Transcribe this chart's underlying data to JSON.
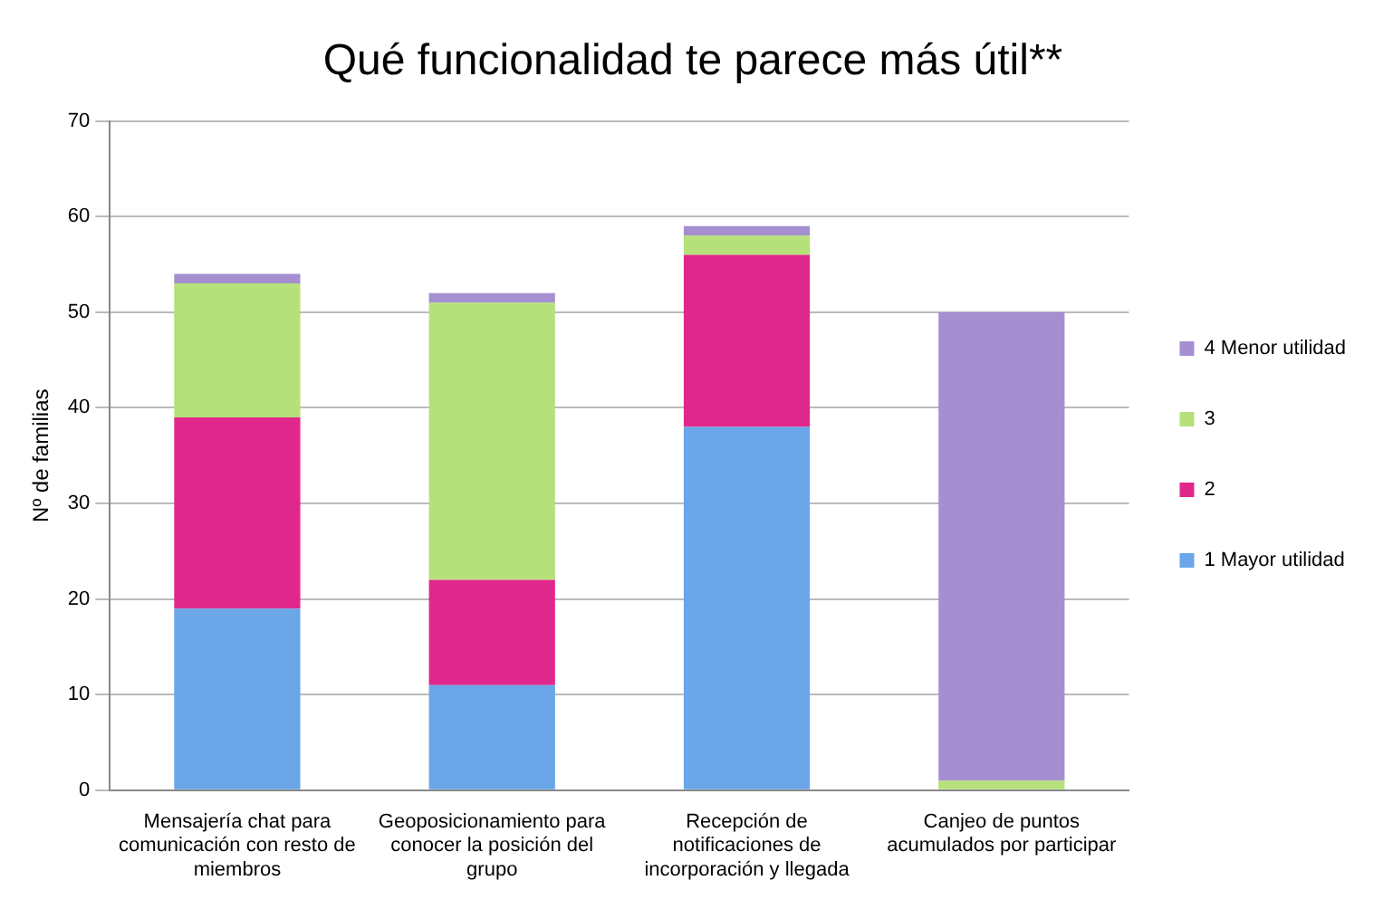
{
  "chart_data": {
    "type": "bar",
    "title": "Qué funcionalidad te parece más útil**",
    "ylabel": "Nº de familias",
    "categories": [
      "Mensajería chat para comunicación con resto de miembros",
      "Geoposicionamiento para conocer la posición del grupo",
      "Recepción de notificaciones de incorporación y llegada",
      "Canjeo de puntos acumulados por participar"
    ],
    "stacked": true,
    "ylim": [
      0,
      70
    ],
    "yticks": [
      0,
      10,
      20,
      30,
      40,
      50,
      60,
      70
    ],
    "grid": "y",
    "legend": "right",
    "series": [
      {
        "name": "1 Mayor utilidad",
        "color": "#6aa6e8",
        "values": [
          19,
          11,
          38,
          0
        ]
      },
      {
        "name": "2",
        "color": "#e0288c",
        "values": [
          20,
          11,
          18,
          0
        ]
      },
      {
        "name": "3",
        "color": "#b5e07a",
        "values": [
          14,
          29,
          2,
          1
        ]
      },
      {
        "name": "4 Menor utilidad",
        "color": "#a58fd0",
        "values": [
          1,
          1,
          1,
          49
        ]
      }
    ]
  }
}
